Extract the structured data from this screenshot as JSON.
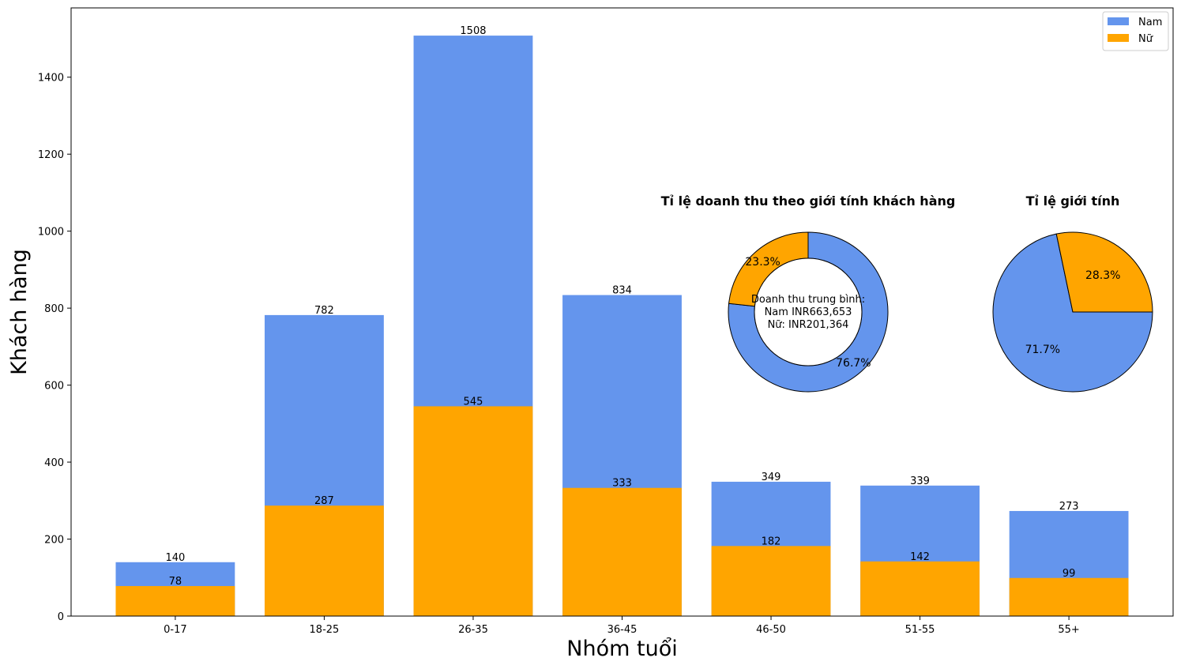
{
  "chart_data": [
    {
      "type": "bar",
      "stacked": "overlay",
      "categories": [
        "0-17",
        "18-25",
        "26-35",
        "36-45",
        "46-50",
        "51-55",
        "55+"
      ],
      "series": [
        {
          "name": "Nam",
          "color": "#6495ED",
          "values": [
            140,
            782,
            1508,
            834,
            349,
            339,
            273
          ]
        },
        {
          "name": "Nữ",
          "color": "#FFA500",
          "values": [
            78,
            287,
            545,
            333,
            182,
            142,
            99
          ]
        }
      ],
      "xlabel": "Nhóm tuổi",
      "ylabel": "Khách hàng",
      "ylim": [
        0,
        1580
      ],
      "yticks": [
        0,
        200,
        400,
        600,
        800,
        1000,
        1200,
        1400
      ],
      "legend_placement": "top-right",
      "grid": false
    },
    {
      "type": "pie",
      "donut": true,
      "title": "Tỉ lệ doanh thu theo giới tính khách hàng",
      "slices": [
        {
          "name": "Nam",
          "color": "#6495ED",
          "value": 76.7,
          "label": "76.7%"
        },
        {
          "name": "Nữ",
          "color": "#FFA500",
          "value": 23.3,
          "label": "23.3%"
        }
      ],
      "center_text": [
        "Doanh thu trung bình:",
        "Nam INR663,653",
        "Nữ: INR201,364"
      ]
    },
    {
      "type": "pie",
      "title": "Tỉ lệ giới tính",
      "slices": [
        {
          "name": "Nam",
          "color": "#6495ED",
          "value": 71.7,
          "label": "71.7%"
        },
        {
          "name": "Nữ",
          "color": "#FFA500",
          "value": 28.3,
          "label": "28.3%"
        }
      ]
    }
  ]
}
